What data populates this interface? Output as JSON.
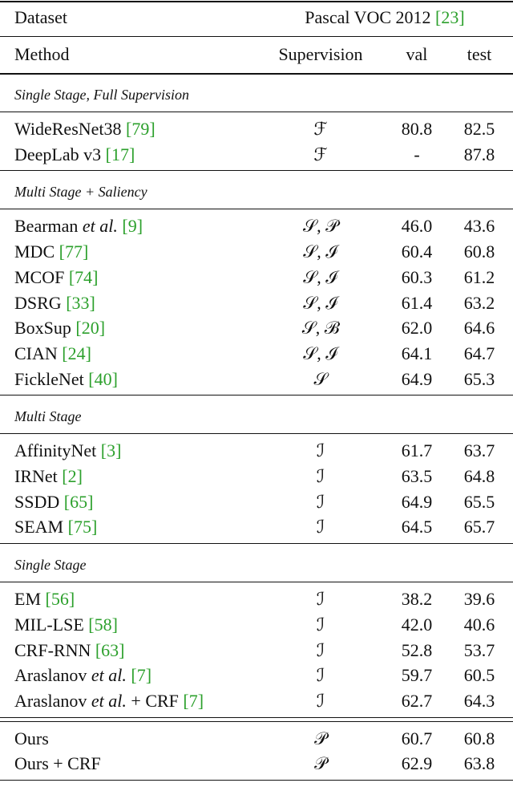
{
  "header": {
    "dataset": "Dataset",
    "benchmark": "Pascal VOC 2012",
    "benchmark_cite": "[23]",
    "method": "Method",
    "supervision": "Supervision",
    "val": "val",
    "test": "test"
  },
  "sections": [
    {
      "title": "Single Stage, Full Supervision",
      "rows": [
        {
          "name": "WideResNet38",
          "cite": "[79]",
          "supervision": "ℱ",
          "val": "80.8",
          "test": "82.5"
        },
        {
          "name": "DeepLab v3",
          "cite": "[17]",
          "supervision": "ℱ",
          "val": "-",
          "test": "87.8"
        }
      ]
    },
    {
      "title": "Multi Stage + Saliency",
      "rows": [
        {
          "name": "Bearman",
          "etal": "et al.",
          "cite": "[9]",
          "supervision": "𝒮, 𝒫",
          "val": "46.0",
          "test": "43.6"
        },
        {
          "name": "MDC",
          "cite": "[77]",
          "supervision": "𝒮, ℐ",
          "val": "60.4",
          "test": "60.8"
        },
        {
          "name": "MCOF",
          "cite": "[74]",
          "supervision": "𝒮, ℐ",
          "val": "60.3",
          "test": "61.2"
        },
        {
          "name": "DSRG",
          "cite": "[33]",
          "supervision": "𝒮, ℐ",
          "val": "61.4",
          "test": "63.2"
        },
        {
          "name": "BoxSup",
          "cite": "[20]",
          "supervision": "𝒮, ℬ",
          "val": "62.0",
          "test": "64.6"
        },
        {
          "name": "CIAN",
          "cite": "[24]",
          "supervision": "𝒮, ℐ",
          "val": "64.1",
          "test": "64.7"
        },
        {
          "name": "FickleNet",
          "cite": "[40]",
          "supervision": "𝒮",
          "val": "64.9",
          "test": "65.3"
        }
      ]
    },
    {
      "title": "Multi Stage",
      "rows": [
        {
          "name": "AffinityNet",
          "cite": "[3]",
          "supervision": "ℐ",
          "val": "61.7",
          "test": "63.7"
        },
        {
          "name": "IRNet",
          "cite": "[2]",
          "supervision": "ℐ",
          "val": "63.5",
          "test": "64.8"
        },
        {
          "name": "SSDD",
          "cite": "[65]",
          "supervision": "ℐ",
          "val": "64.9",
          "test": "65.5"
        },
        {
          "name": "SEAM",
          "cite": "[75]",
          "supervision": "ℐ",
          "val": "64.5",
          "test": "65.7"
        }
      ]
    },
    {
      "title": "Single Stage",
      "rows": [
        {
          "name": "EM",
          "cite": "[56]",
          "supervision": "ℐ",
          "val": "38.2",
          "test": "39.6"
        },
        {
          "name": "MIL-LSE",
          "cite": "[58]",
          "supervision": "ℐ",
          "val": "42.0",
          "test": "40.6"
        },
        {
          "name": "CRF-RNN",
          "cite": "[63]",
          "supervision": "ℐ",
          "val": "52.8",
          "test": "53.7"
        },
        {
          "name": "Araslanov",
          "etal": "et al.",
          "cite": "[7]",
          "supervision": "ℐ",
          "val": "59.7",
          "test": "60.5"
        },
        {
          "name": "Araslanov",
          "etal": "et al.",
          "suffix": "+ CRF",
          "cite": "[7]",
          "supervision": "ℐ",
          "val": "62.7",
          "test": "64.3"
        }
      ]
    },
    {
      "rows": [
        {
          "name": "Ours",
          "supervision": "𝒫",
          "val": "60.7",
          "test": "60.8"
        },
        {
          "name": "Ours + CRF",
          "supervision": "𝒫",
          "val": "62.9",
          "test": "63.8"
        }
      ]
    }
  ]
}
